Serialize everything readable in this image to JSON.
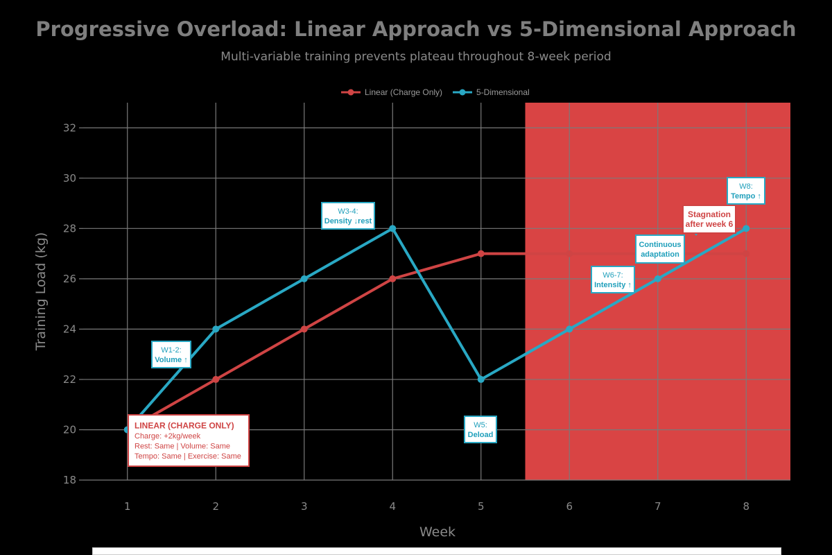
{
  "chart_data": {
    "type": "line",
    "title": "Progressive Overload: Linear Approach vs 5-Dimensional Approach",
    "subtitle": "Multi-variable training prevents plateau throughout 8-week period",
    "xlabel": "Week",
    "ylabel": "Training Load (kg)",
    "x": [
      1,
      2,
      3,
      4,
      5,
      6,
      7,
      8
    ],
    "xlim": [
      0.5,
      8.5
    ],
    "ylim": [
      18,
      33
    ],
    "x_ticks": [
      "1",
      "2",
      "3",
      "4",
      "5",
      "6",
      "7",
      "8"
    ],
    "y_ticks": [
      "18",
      "20",
      "22",
      "24",
      "26",
      "28",
      "30",
      "32"
    ],
    "grid": true,
    "legend_position": "top-center",
    "series": [
      {
        "name": "Linear (Charge Only)",
        "color": "#cf4444",
        "x": [
          1,
          2,
          3,
          4,
          5,
          6,
          7,
          8
        ],
        "values": [
          20,
          22,
          24,
          26,
          27,
          27,
          27,
          27
        ]
      },
      {
        "name": "5-Dimensional",
        "color": "#29a8c4",
        "x": [
          1,
          2,
          3,
          4,
          5,
          6,
          7,
          8
        ],
        "values": [
          20,
          24,
          26,
          28,
          22,
          24,
          26,
          28
        ]
      }
    ],
    "shaded_region": {
      "x_start": 5.5,
      "x_end": 8.5,
      "color": "#d94444"
    },
    "annotations": [
      {
        "id": "w12",
        "lines": [
          "W1-2:",
          "Volume ↑"
        ],
        "style": "blue"
      },
      {
        "id": "w34",
        "lines": [
          "W3-4:",
          "Density ↓rest"
        ],
        "style": "blue"
      },
      {
        "id": "w5",
        "lines": [
          "W5:",
          "Deload"
        ],
        "style": "blue"
      },
      {
        "id": "w67",
        "lines": [
          "W6-7:",
          "Intensity ↑"
        ],
        "style": "blue"
      },
      {
        "id": "w8",
        "lines": [
          "W8:",
          "Tempo ↑"
        ],
        "style": "blue"
      },
      {
        "id": "cont",
        "lines": [
          "Continuous",
          "adaptation"
        ],
        "style": "blue-bold"
      },
      {
        "id": "stag",
        "lines": [
          "Stagnation",
          "after week 6"
        ],
        "style": "red-bold"
      },
      {
        "id": "linbox",
        "lines": [
          "LINEAR (CHARGE ONLY)",
          "Charge: +2kg/week",
          "Rest: Same | Volume: Same",
          "Tempo: Same | Exercise: Same"
        ],
        "style": "red"
      }
    ]
  }
}
